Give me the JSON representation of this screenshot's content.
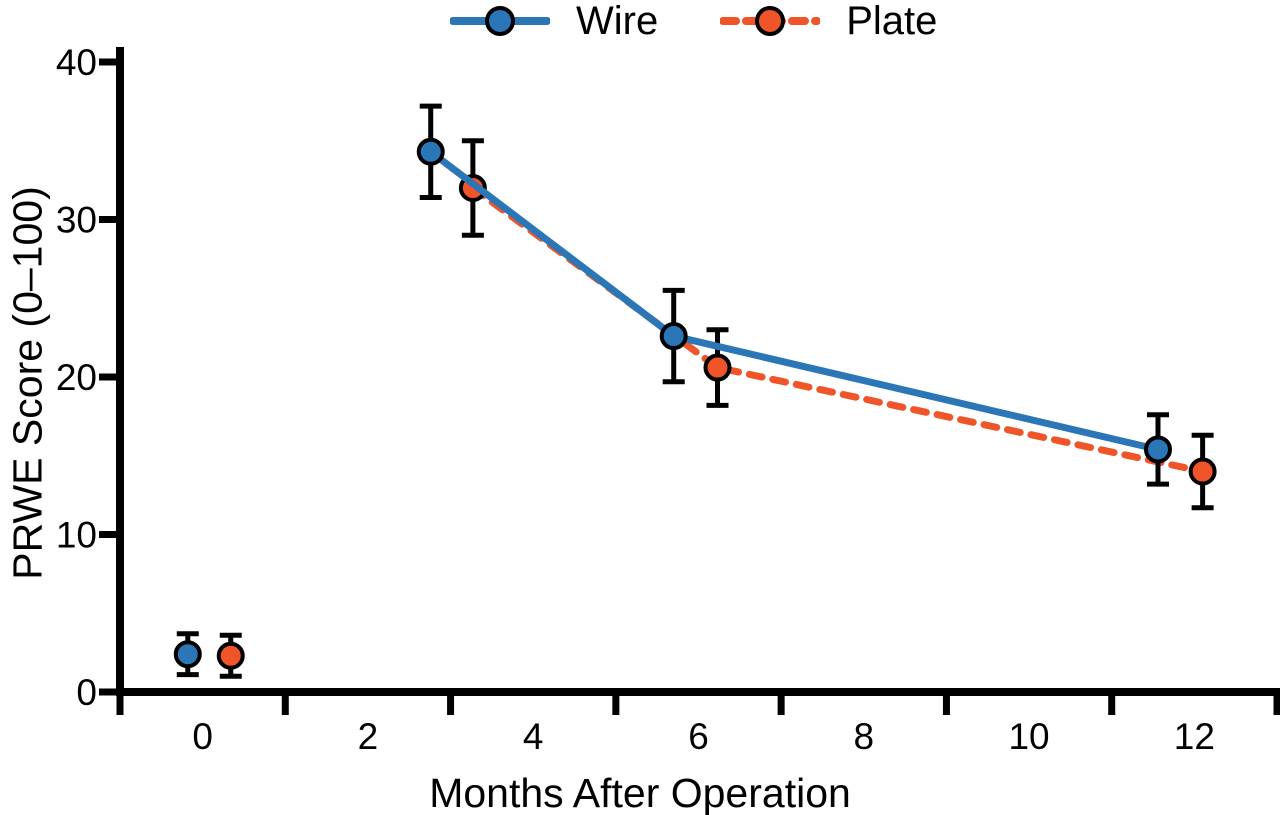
{
  "legend": {
    "position": "top-center",
    "items": [
      {
        "label": "Wire",
        "series": "Wire"
      },
      {
        "label": "Plate",
        "series": "Plate"
      }
    ]
  },
  "chart_data": {
    "type": "line",
    "title": "",
    "xlabel": "Months After Operation",
    "ylabel": "PRWE Score (0–100)",
    "xlim": [
      -1,
      13
    ],
    "ylim": [
      0,
      40
    ],
    "grid": false,
    "error_bars": true,
    "legend_position": "top-center",
    "x_axis": {
      "tick_marks": [
        -1,
        1,
        3,
        5,
        7,
        9,
        11,
        13
      ],
      "tick_labels": [
        0,
        2,
        4,
        6,
        8,
        10,
        12
      ]
    },
    "y_axis": {
      "tick_marks": [
        0,
        10,
        20,
        30,
        40
      ],
      "tick_labels": [
        0,
        10,
        20,
        30,
        40
      ]
    },
    "months": [
      0,
      3,
      6,
      12
    ],
    "series": [
      {
        "name": "Plate",
        "color": "#F0552A",
        "line_style": "dashed",
        "marker": "circle",
        "x": [
          0.34,
          3.27,
          6.23,
          12.1
        ],
        "values": [
          2.3,
          32.0,
          20.6,
          14.0
        ],
        "errors": [
          1.3,
          3.0,
          2.4,
          2.3
        ],
        "line_start_index": 1
      },
      {
        "name": "Wire",
        "color": "#2B76B7",
        "line_style": "solid",
        "marker": "circle",
        "x": [
          -0.18,
          2.76,
          5.7,
          11.56
        ],
        "values": [
          2.4,
          34.3,
          22.6,
          15.4
        ],
        "errors": [
          1.3,
          2.9,
          2.9,
          2.2
        ],
        "line_start_index": 1
      }
    ]
  }
}
